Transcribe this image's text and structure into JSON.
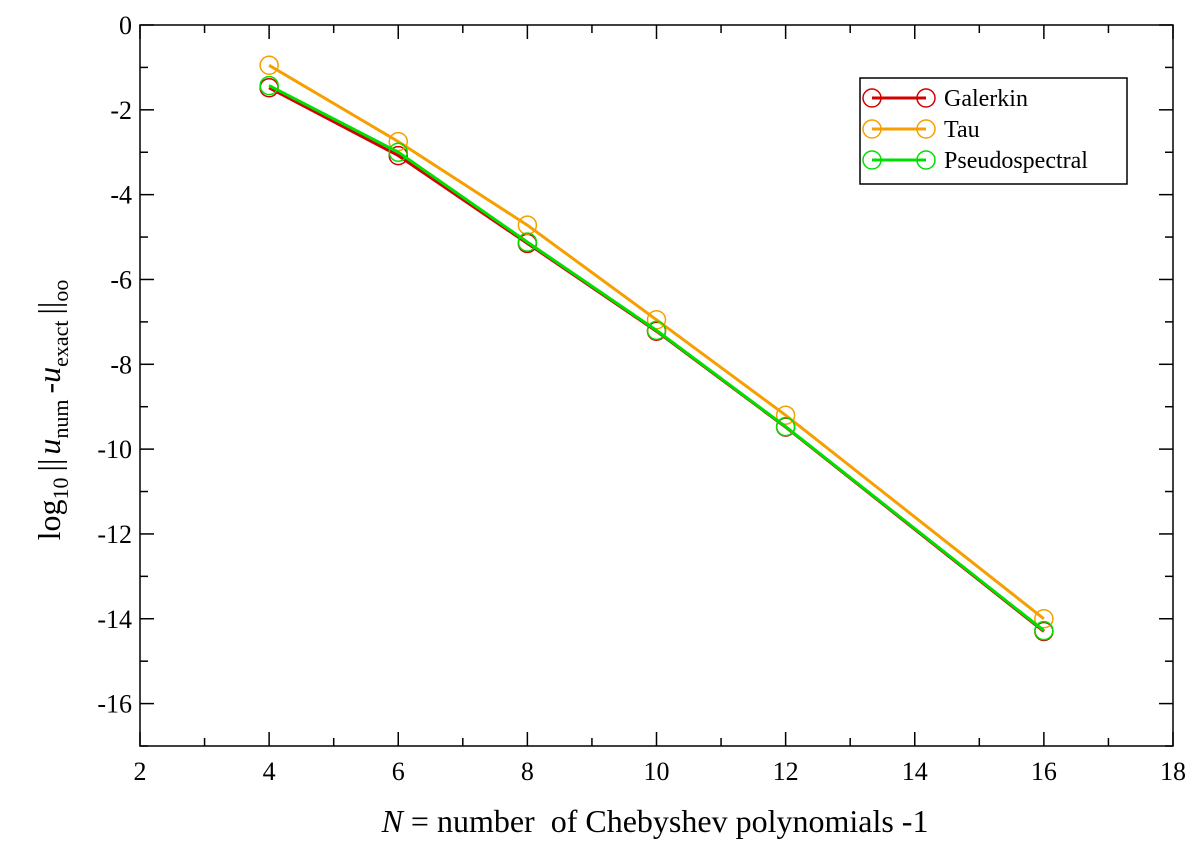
{
  "chart_data": {
    "type": "line",
    "xlabel": {
      "italic": "N",
      "rest": " = number  of Chebyshev polynomials -1"
    },
    "ylabel": {
      "log": "log",
      "log_sub": "10",
      "bars1": "||",
      "u1": "u",
      "sub1": "num",
      "minus": "-",
      "u2": "u",
      "sub2": "exact",
      "bars2": "||",
      "sub3": "oo"
    },
    "xlim": [
      2,
      18
    ],
    "ylim": [
      -17,
      0
    ],
    "x_ticks": [
      2,
      4,
      6,
      8,
      10,
      12,
      14,
      16,
      18
    ],
    "y_ticks": [
      0,
      -2,
      -4,
      -6,
      -8,
      -10,
      -12,
      -14,
      -16
    ],
    "x_minor_step": 1,
    "y_minor_step": 1,
    "grid": false,
    "legend_position": "top-right",
    "x": [
      4,
      6,
      8,
      10,
      12,
      16
    ],
    "series": [
      {
        "name": "Galerkin",
        "color": "#d40000",
        "values": [
          -1.48,
          -3.08,
          -5.15,
          -7.22,
          -9.48,
          -14.3
        ]
      },
      {
        "name": "Tau",
        "color": "#f5a000",
        "values": [
          -0.95,
          -2.75,
          -4.72,
          -6.95,
          -9.2,
          -14.0
        ]
      },
      {
        "name": "Pseudospectral",
        "color": "#00e000",
        "values": [
          -1.43,
          -3.0,
          -5.12,
          -7.2,
          -9.47,
          -14.28
        ]
      }
    ]
  }
}
